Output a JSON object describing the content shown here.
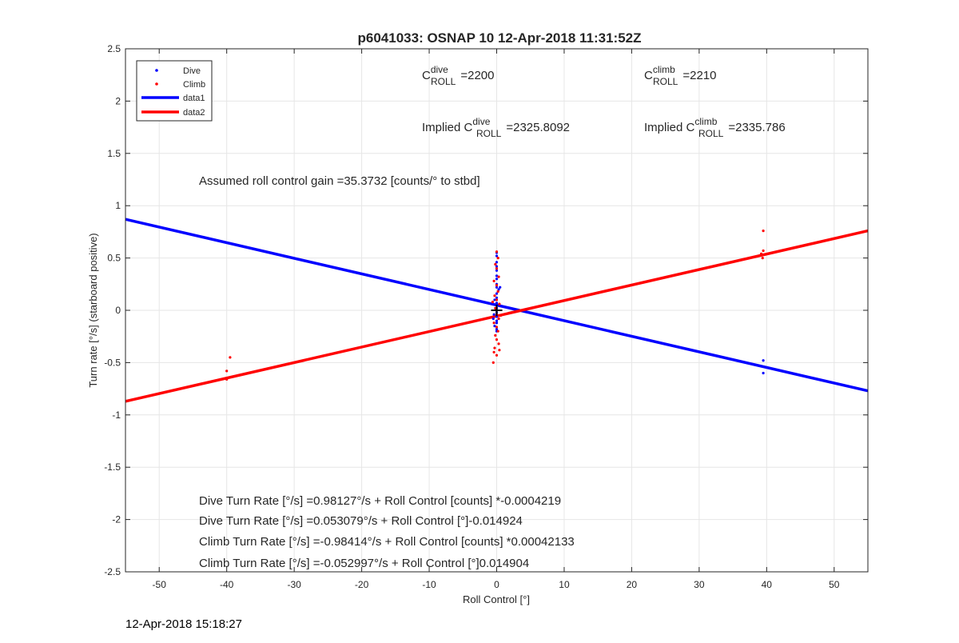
{
  "chart_data": {
    "type": "scatter",
    "title": "p6041033: OSNAP 10 12-Apr-2018 11:31:52Z",
    "xlabel": "Roll Control [°]",
    "ylabel": "Turn rate [°/s] (starboard positive)",
    "xlim": [
      -55,
      55
    ],
    "ylim": [
      -2.5,
      2.5
    ],
    "xticks": [
      -50,
      -40,
      -30,
      -20,
      -10,
      0,
      10,
      20,
      30,
      40,
      50
    ],
    "yticks": [
      -2.5,
      -2,
      -1.5,
      -1,
      -0.5,
      0,
      0.5,
      1,
      1.5,
      2,
      2.5
    ],
    "grid": true,
    "legend_position": "top-left",
    "legend": [
      {
        "label": "Dive",
        "kind": "marker",
        "color": "#0000ff"
      },
      {
        "label": "Climb",
        "kind": "marker",
        "color": "#ff0000"
      },
      {
        "label": "data1",
        "kind": "line",
        "color": "#0000ff"
      },
      {
        "label": "data2",
        "kind": "line",
        "color": "#ff0000"
      }
    ],
    "scatter_series": [
      {
        "name": "Dive",
        "color": "#0000ff",
        "points": [
          [
            0,
            0.55
          ],
          [
            0,
            0.52
          ],
          [
            0,
            0.46
          ],
          [
            0,
            0.42
          ],
          [
            0,
            0.38
          ],
          [
            0,
            0.33
          ],
          [
            0,
            0.3
          ],
          [
            0,
            0.25
          ],
          [
            0,
            0.22
          ],
          [
            0.3,
            0.2
          ],
          [
            0,
            0.16
          ],
          [
            0,
            0.12
          ],
          [
            -0.3,
            0.1
          ],
          [
            0,
            0.07
          ],
          [
            0.4,
            0.05
          ],
          [
            0,
            0.02
          ],
          [
            0,
            -0.02
          ],
          [
            -0.4,
            -0.04
          ],
          [
            0,
            -0.06
          ],
          [
            0.3,
            -0.08
          ],
          [
            0,
            -0.1
          ],
          [
            0,
            -0.12
          ],
          [
            -0.3,
            -0.15
          ],
          [
            0,
            -0.18
          ],
          [
            0,
            -0.2
          ],
          [
            0.5,
            0.22
          ],
          [
            -0.5,
            -0.08
          ],
          [
            39.5,
            -0.48
          ],
          [
            39.5,
            -0.6
          ]
        ]
      },
      {
        "name": "Climb",
        "color": "#ff0000",
        "points": [
          [
            0,
            0.56
          ],
          [
            0.2,
            0.5
          ],
          [
            -0.2,
            0.44
          ],
          [
            0,
            0.4
          ],
          [
            0.3,
            0.32
          ],
          [
            -0.4,
            0.28
          ],
          [
            0,
            0.24
          ],
          [
            0.2,
            0.18
          ],
          [
            -0.3,
            0.14
          ],
          [
            0,
            0.1
          ],
          [
            0.4,
            0.06
          ],
          [
            -0.2,
            0.02
          ],
          [
            0,
            -0.04
          ],
          [
            0.3,
            -0.08
          ],
          [
            -0.4,
            -0.12
          ],
          [
            0,
            -0.16
          ],
          [
            0.2,
            -0.2
          ],
          [
            -0.2,
            -0.24
          ],
          [
            0,
            -0.28
          ],
          [
            0.3,
            -0.32
          ],
          [
            -0.3,
            -0.36
          ],
          [
            0.4,
            -0.38
          ],
          [
            -0.4,
            -0.4
          ],
          [
            0,
            -0.43
          ],
          [
            -0.5,
            -0.5
          ],
          [
            0.6,
            -0.05
          ],
          [
            -0.6,
            0.08
          ],
          [
            39.5,
            0.76
          ],
          [
            39.5,
            0.57
          ],
          [
            39.2,
            0.54
          ],
          [
            39.4,
            0.5
          ],
          [
            -40,
            -0.58
          ],
          [
            -39.5,
            -0.45
          ],
          [
            -40,
            -0.66
          ]
        ]
      }
    ],
    "line_series": [
      {
        "name": "data1",
        "color": "#0000ff",
        "x": [
          -55,
          55
        ],
        "y": [
          0.87,
          -0.77
        ]
      },
      {
        "name": "data2",
        "color": "#ff0000",
        "x": [
          -55,
          55
        ],
        "y": [
          -0.87,
          0.76
        ]
      }
    ],
    "center_marker": {
      "x": 0,
      "y": 0,
      "symbol": "+",
      "color": "#000000"
    },
    "annotations": {
      "c_roll_dive": {
        "base": "C",
        "sup": "dive",
        "sub": "ROLL",
        "value": "=2200"
      },
      "c_roll_climb": {
        "base": "C",
        "sup": "climb",
        "sub": "ROLL",
        "value": "=2210"
      },
      "implied_dive": {
        "prefix": "Implied C",
        "sup": "dive",
        "sub": "ROLL",
        "value": "=2325.8092"
      },
      "implied_climb": {
        "prefix": "Implied C",
        "sup": "climb",
        "sub": "ROLL",
        "value": "=2335.786"
      },
      "gain": "Assumed roll control gain =35.3732 [counts/° to stbd]",
      "equations": [
        "Dive Turn Rate [°/s] =0.98127°/s + Roll Control [counts] *-0.0004219",
        "Dive Turn Rate [°/s] =0.053079°/s + Roll Control [°]-0.014924",
        "Climb Turn Rate [°/s] =-0.98414°/s + Roll Control [counts] *0.00042133",
        "Climb Turn Rate [°/s] =-0.052997°/s + Roll Control [°]0.014904"
      ]
    }
  },
  "footer": {
    "timestamp": "12-Apr-2018 15:18:27"
  }
}
